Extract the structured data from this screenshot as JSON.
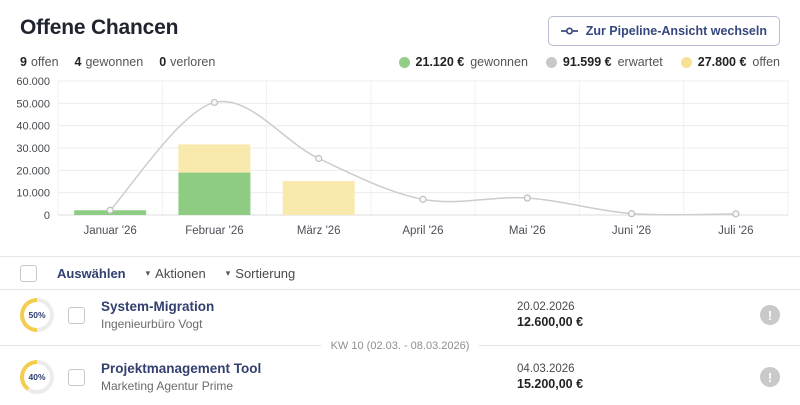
{
  "header": {
    "title": "Offene Chancen",
    "stats": [
      {
        "value": "9",
        "label": "offen"
      },
      {
        "value": "4",
        "label": "gewonnen"
      },
      {
        "value": "0",
        "label": "verloren"
      }
    ],
    "pipeline_button_label": "Zur Pipeline-Ansicht wechseln"
  },
  "legend": [
    {
      "amount": "21.120 €",
      "label": "gewonnen",
      "color": "#93cd87"
    },
    {
      "amount": "91.599 €",
      "label": "erwartet",
      "color": "#c8c8c8"
    },
    {
      "amount": "27.800 €",
      "label": "offen",
      "color": "#f7e195"
    }
  ],
  "chart_data": {
    "type": "combo-stacked-bar-line",
    "categories": [
      "Januar '26",
      "Februar '26",
      "März '26",
      "April '26",
      "Mai '26",
      "Juni '26",
      "Juli '26"
    ],
    "bar_series": [
      {
        "name": "gewonnen",
        "color": "#8fcc83",
        "values": [
          2120,
          19000,
          0,
          0,
          0,
          0,
          0
        ]
      },
      {
        "name": "offen",
        "color": "#fae9ad",
        "values": [
          0,
          12600,
          15200,
          0,
          0,
          0,
          0
        ]
      }
    ],
    "line_series": {
      "name": "erwartet",
      "color": "#cccccc",
      "values": [
        2120,
        50400,
        25300,
        7000,
        7600,
        600,
        500
      ]
    },
    "ylim": [
      0,
      60000
    ],
    "y_ticks": [
      {
        "v": 0,
        "label": "0"
      },
      {
        "v": 10000,
        "label": "10.000"
      },
      {
        "v": 20000,
        "label": "20.000"
      },
      {
        "v": 30000,
        "label": "30.000"
      },
      {
        "v": 40000,
        "label": "40.000"
      },
      {
        "v": 50000,
        "label": "50.000"
      },
      {
        "v": 60000,
        "label": "60.000"
      }
    ],
    "grid": true,
    "legend_position": "top-right"
  },
  "toolbar": {
    "caret": "▾",
    "select_label": "Auswählen",
    "actions_label": "Aktionen",
    "sort_label": "Sortierung"
  },
  "list": {
    "alert_icon_glyph": "!",
    "week_divider": "KW 10 (02.03. - 08.03.2026)",
    "rows": [
      {
        "percent": "50%",
        "percent_value": 50,
        "title": "System-Migration",
        "company": "Ingenieurbüro Vogt",
        "date": "20.02.2026",
        "amount": "12.600,00 €"
      },
      {
        "percent": "40%",
        "percent_value": 40,
        "title": "Projektmanagement Tool",
        "company": "Marketing Agentur Prime",
        "date": "04.03.2026",
        "amount": "15.200,00 €"
      }
    ]
  },
  "colors": {
    "accent_navy": "#36477e",
    "donut_yellow": "#f3ce4e",
    "donut_track": "#ececec",
    "grid_line": "#ececec",
    "axis_line": "#dcdcdc"
  }
}
